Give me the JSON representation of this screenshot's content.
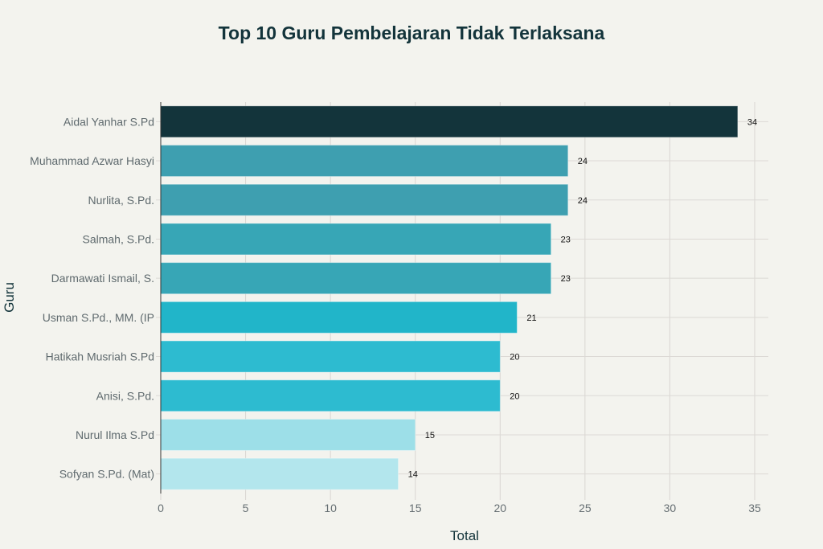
{
  "chart_data": {
    "type": "bar",
    "orientation": "horizontal",
    "title": "Top 10 Guru Pembelajaran Tidak Terlaksana",
    "xlabel": "Total",
    "ylabel": "Guru",
    "xlim": [
      0,
      35.8
    ],
    "xticks": [
      0,
      5,
      10,
      15,
      20,
      25,
      30,
      35
    ],
    "grid": true,
    "categories": [
      "Aidal Yanhar S.Pd",
      "Muhammad Azwar Hasyi",
      "Nurlita, S.Pd.",
      "Salmah, S.Pd.",
      "Darmawati Ismail, S.",
      "Usman S.Pd., MM. (IP",
      "Hatikah Musriah S.Pd",
      "Anisi, S.Pd.",
      "Nurul Ilma S.Pd",
      "Sofyan S.Pd. (Mat)"
    ],
    "values": [
      34,
      24,
      24,
      23,
      23,
      21,
      20,
      20,
      15,
      14
    ],
    "colors": [
      "#13343b",
      "#3e9fb0",
      "#3e9fb0",
      "#37a6b6",
      "#37a6b6",
      "#21b5c9",
      "#2dbbd0",
      "#2dbbd0",
      "#9ddfe8",
      "#b3e6ed"
    ]
  }
}
